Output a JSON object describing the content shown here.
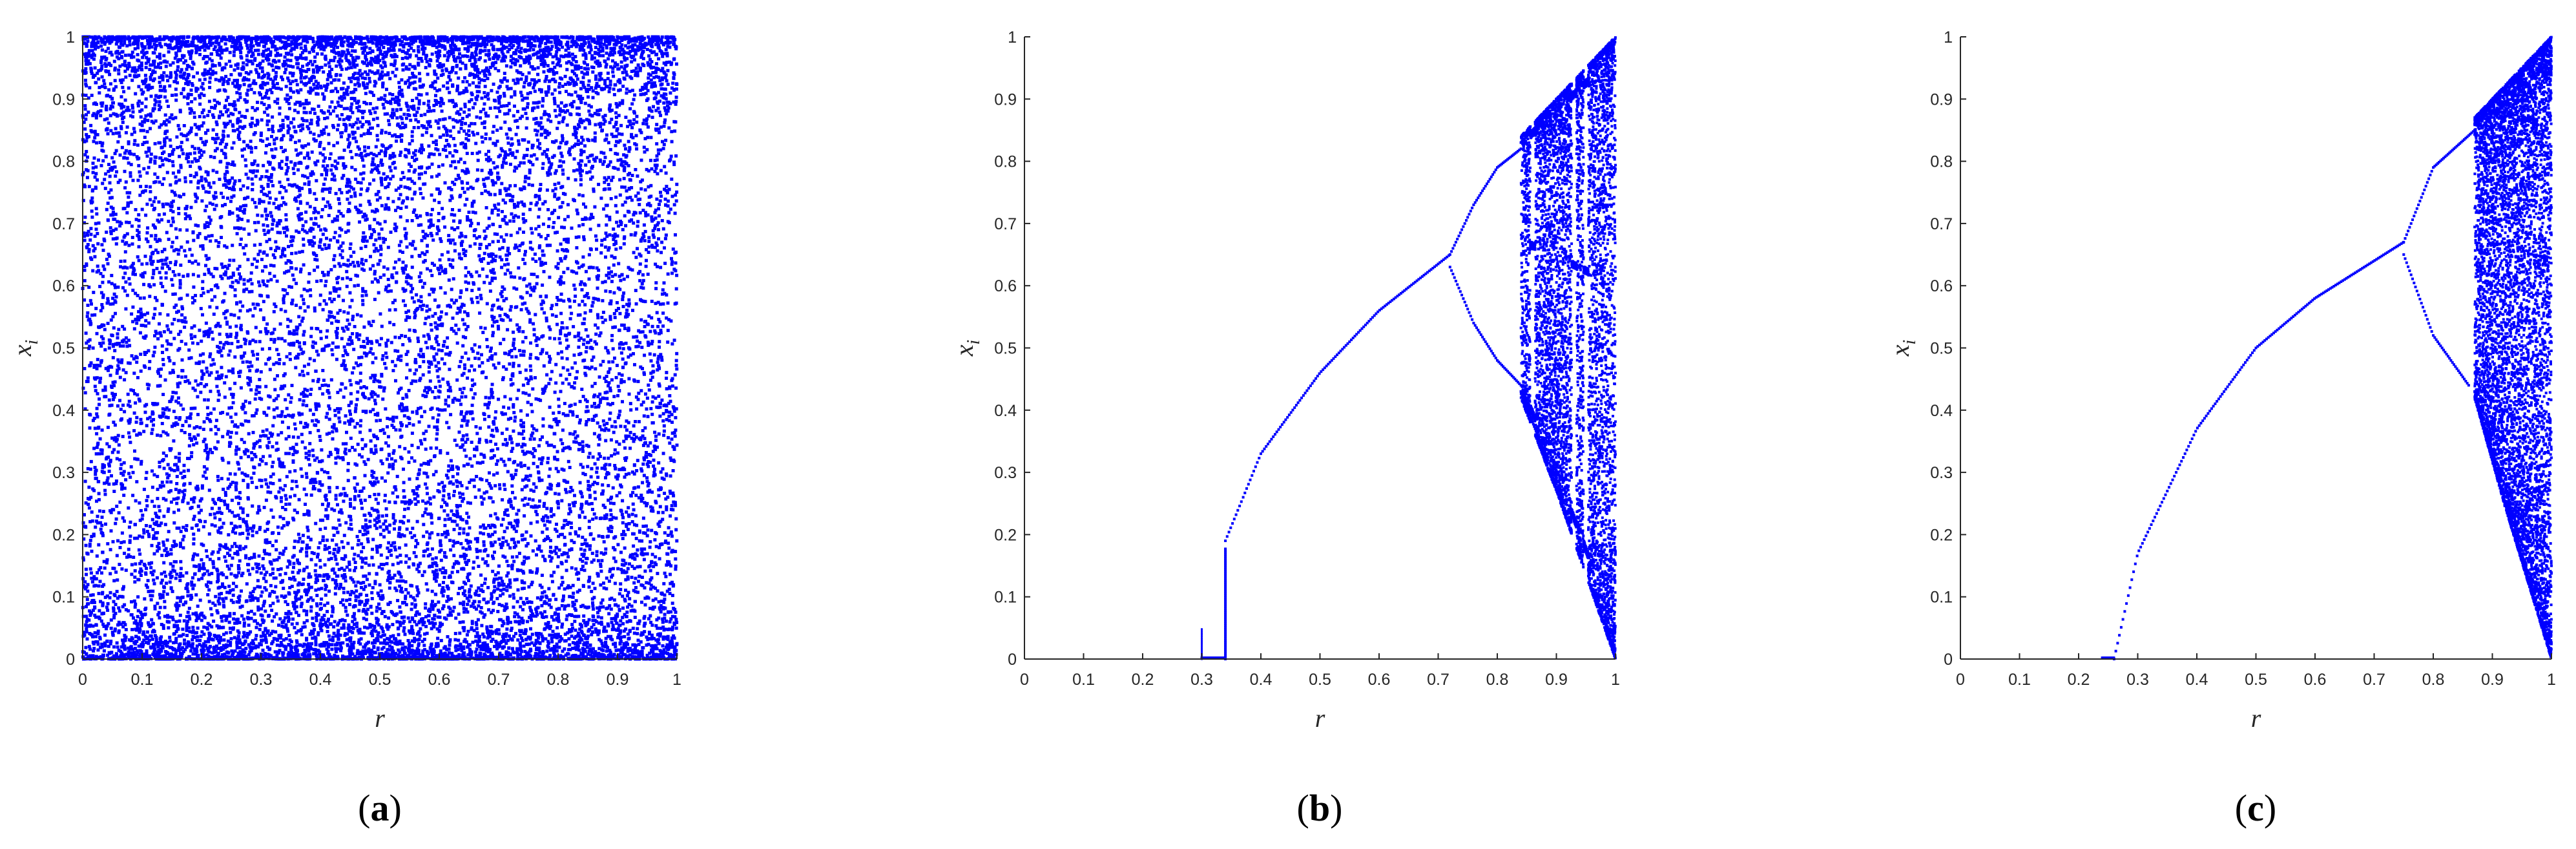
{
  "chart_data": [
    {
      "panel_label": "a",
      "type": "scatter",
      "xlabel": "r",
      "ylabel": "x",
      "ylabel_subscript": "i",
      "xlim": [
        0,
        1
      ],
      "ylim": [
        0,
        1
      ],
      "xticks": [
        "0",
        "0.1",
        "0.2",
        "0.3",
        "0.4",
        "0.5",
        "0.6",
        "0.7",
        "0.8",
        "0.9",
        "1"
      ],
      "yticks": [
        "0",
        "0.1",
        "0.2",
        "0.3",
        "0.4",
        "0.5",
        "0.6",
        "0.7",
        "0.8",
        "0.9",
        "1"
      ],
      "grid": false,
      "color": "#0000ff",
      "pattern": "chaotic everywhere: points fill the whole square for every r in [0, 1], densest near x = 0 and x = 1",
      "r_range": [
        0,
        1
      ]
    },
    {
      "panel_label": "b",
      "type": "scatter",
      "xlabel": "r",
      "ylabel": "x",
      "ylabel_subscript": "i",
      "xlim": [
        0,
        1
      ],
      "ylim": [
        0,
        1
      ],
      "xticks": [
        "0",
        "0.1",
        "0.2",
        "0.3",
        "0.4",
        "0.5",
        "0.6",
        "0.7",
        "0.8",
        "0.9",
        "1"
      ],
      "yticks": [
        "0",
        "0.1",
        "0.2",
        "0.3",
        "0.4",
        "0.5",
        "0.6",
        "0.7",
        "0.8",
        "0.9",
        "1"
      ],
      "grid": false,
      "color": "#0000ff",
      "fixed_point_zero": [
        0.3,
        0.34
      ],
      "jump_at_r": 0.34,
      "jump_to_x": 0.18,
      "fixed_point_branch": [
        [
          0.34,
          0.19
        ],
        [
          0.4,
          0.33
        ],
        [
          0.5,
          0.46
        ],
        [
          0.6,
          0.56
        ],
        [
          0.72,
          0.65
        ]
      ],
      "first_bifurcation_r": 0.72,
      "period2_upper": [
        [
          0.72,
          0.65
        ],
        [
          0.76,
          0.73
        ],
        [
          0.8,
          0.79
        ],
        [
          0.84,
          0.82
        ]
      ],
      "period2_lower": [
        [
          0.72,
          0.63
        ],
        [
          0.76,
          0.54
        ],
        [
          0.8,
          0.48
        ],
        [
          0.84,
          0.44
        ]
      ],
      "chaos_onset_r": 0.84,
      "chaos_upper_bound": [
        [
          0.84,
          0.84
        ],
        [
          1.0,
          1.0
        ]
      ],
      "chaos_lower_bound": [
        [
          0.84,
          0.42
        ],
        [
          0.9,
          0.27
        ],
        [
          1.0,
          0.0
        ]
      ],
      "periodic_windows_r": [
        0.86,
        0.93,
        0.95
      ]
    },
    {
      "panel_label": "c",
      "type": "scatter",
      "xlabel": "r",
      "ylabel": "x",
      "ylabel_subscript": "i",
      "xlim": [
        0,
        1
      ],
      "ylim": [
        0,
        1
      ],
      "xticks": [
        "0",
        "0.1",
        "0.2",
        "0.3",
        "0.4",
        "0.5",
        "0.6",
        "0.7",
        "0.8",
        "0.9",
        "1"
      ],
      "yticks": [
        "0",
        "0.1",
        "0.2",
        "0.3",
        "0.4",
        "0.5",
        "0.6",
        "0.7",
        "0.8",
        "0.9",
        "1"
      ],
      "grid": false,
      "color": "#0000ff",
      "fixed_point_zero": [
        0.24,
        0.26
      ],
      "fixed_point_branch": [
        [
          0.26,
          0.0
        ],
        [
          0.3,
          0.17
        ],
        [
          0.4,
          0.37
        ],
        [
          0.5,
          0.5
        ],
        [
          0.6,
          0.58
        ],
        [
          0.75,
          0.67
        ]
      ],
      "first_bifurcation_r": 0.75,
      "period2_upper": [
        [
          0.75,
          0.67
        ],
        [
          0.8,
          0.79
        ],
        [
          0.87,
          0.85
        ]
      ],
      "period2_lower": [
        [
          0.75,
          0.65
        ],
        [
          0.8,
          0.52
        ],
        [
          0.86,
          0.44
        ]
      ],
      "chaos_onset_r": 0.87,
      "chaos_upper_bound": [
        [
          0.87,
          0.87
        ],
        [
          1.0,
          1.0
        ]
      ],
      "chaos_lower_bound": [
        [
          0.87,
          0.42
        ],
        [
          0.92,
          0.25
        ],
        [
          1.0,
          0.0
        ]
      ]
    }
  ]
}
